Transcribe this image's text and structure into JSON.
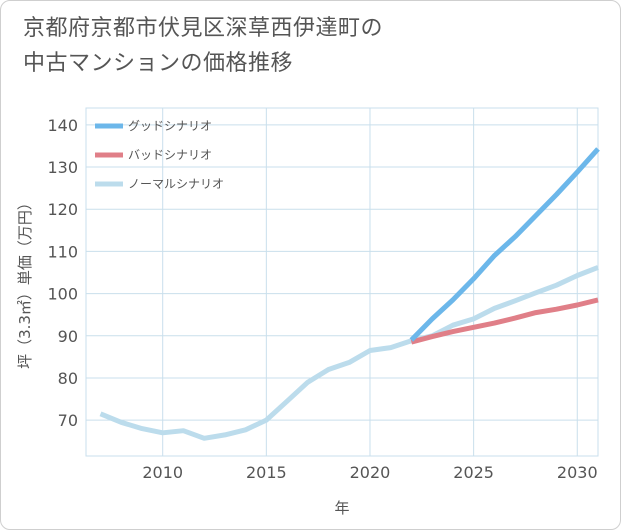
{
  "title": {
    "line1": "京都府京都市伏見区深草西伊達町の",
    "line2": "中古マンションの価格推移"
  },
  "colors": {
    "good": "#6cb7ea",
    "bad": "#e07f88",
    "normal": "#bcdcec",
    "grid": "#c9dfec",
    "text": "#555555"
  },
  "chart_data": {
    "type": "line",
    "xlabel": "年",
    "ylabel": "坪（3.3㎡）単価（万円）",
    "xlim": [
      2006.3,
      2031
    ],
    "ylim": [
      61.5,
      144
    ],
    "xticks": [
      2010,
      2015,
      2020,
      2025,
      2030
    ],
    "yticks": [
      70,
      80,
      90,
      100,
      110,
      120,
      130,
      140
    ],
    "grid": true,
    "legend_position": "top-left",
    "series": [
      {
        "name": "グッドシナリオ",
        "color": "#6cb7ea",
        "points": [
          [
            2022,
            89.0
          ],
          [
            2023,
            94.0
          ],
          [
            2024,
            98.5
          ],
          [
            2025,
            103.5
          ],
          [
            2026,
            109.0
          ],
          [
            2027,
            113.5
          ],
          [
            2028,
            118.5
          ],
          [
            2029,
            123.5
          ],
          [
            2030,
            128.8
          ],
          [
            2031,
            134.3
          ]
        ]
      },
      {
        "name": "バッドシナリオ",
        "color": "#e07f88",
        "points": [
          [
            2022,
            88.5
          ],
          [
            2023,
            89.8
          ],
          [
            2024,
            91.0
          ],
          [
            2025,
            92.0
          ],
          [
            2026,
            93.0
          ],
          [
            2027,
            94.2
          ],
          [
            2028,
            95.5
          ],
          [
            2029,
            96.3
          ],
          [
            2030,
            97.3
          ],
          [
            2031,
            98.5
          ]
        ]
      },
      {
        "name": "ノーマルシナリオ",
        "color": "#bcdcec",
        "points": [
          [
            2007,
            71.5
          ],
          [
            2008,
            69.5
          ],
          [
            2009,
            68.0
          ],
          [
            2010,
            67.0
          ],
          [
            2011,
            67.5
          ],
          [
            2012,
            65.7
          ],
          [
            2013,
            66.5
          ],
          [
            2014,
            67.7
          ],
          [
            2015,
            70.0
          ],
          [
            2016,
            74.5
          ],
          [
            2017,
            79.0
          ],
          [
            2018,
            82.0
          ],
          [
            2019,
            83.7
          ],
          [
            2020,
            86.5
          ],
          [
            2021,
            87.2
          ],
          [
            2022,
            88.8
          ],
          [
            2023,
            90.0
          ],
          [
            2024,
            92.5
          ],
          [
            2025,
            94.0
          ],
          [
            2026,
            96.5
          ],
          [
            2027,
            98.3
          ],
          [
            2028,
            100.2
          ],
          [
            2029,
            102.0
          ],
          [
            2030,
            104.3
          ],
          [
            2031,
            106.2
          ]
        ]
      }
    ]
  }
}
